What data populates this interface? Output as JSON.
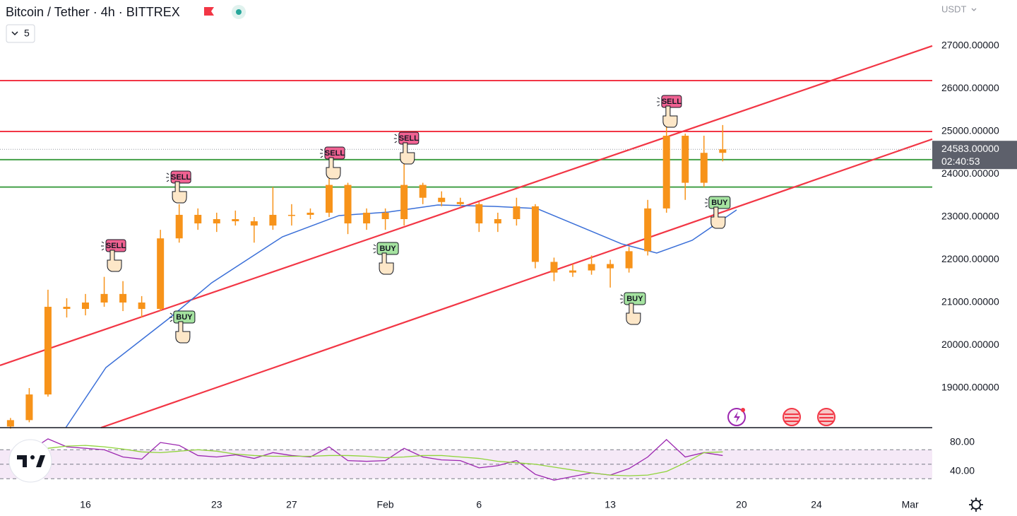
{
  "header": {
    "title": "Bitcoin / Tether · 4h · BITTREX",
    "indicator_count": "5",
    "currency": "USDT"
  },
  "chart_data": [
    {
      "type": "candlestick",
      "x": [
        12,
        13,
        14,
        15,
        16,
        17,
        18,
        19,
        20,
        21,
        22,
        23,
        24,
        25,
        26,
        27,
        28,
        29,
        30,
        31,
        32,
        33,
        34,
        35,
        36,
        37,
        38,
        39,
        40,
        41,
        42,
        43,
        44,
        45,
        46,
        47,
        48,
        49,
        50
      ],
      "open": [
        18100,
        18250,
        18850,
        20900,
        20850,
        21000,
        21200,
        21000,
        20850,
        22500,
        23050,
        22850,
        22950,
        22900,
        22800,
        23050,
        23050,
        23100,
        23750,
        22850,
        23100,
        22950,
        23750,
        23450,
        23350,
        23300,
        22850,
        22950,
        23250,
        21950,
        21700,
        21750,
        21900,
        21800,
        22200,
        23200,
        24900,
        23800,
        24500
      ],
      "high": [
        18300,
        19000,
        21300,
        21100,
        21200,
        21600,
        21500,
        21150,
        22700,
        23300,
        23200,
        23100,
        23150,
        23000,
        23700,
        23300,
        23200,
        23900,
        23800,
        23200,
        23200,
        24300,
        23800,
        23600,
        23450,
        23350,
        23100,
        23450,
        23300,
        22050,
        21900,
        22100,
        22000,
        22300,
        23400,
        25200,
        24950,
        24900,
        25150
      ],
      "low": [
        18050,
        18200,
        18800,
        20650,
        20700,
        20900,
        20800,
        20650,
        20800,
        22400,
        22700,
        22650,
        22800,
        22400,
        22700,
        22800,
        22950,
        23000,
        22600,
        22700,
        22700,
        22800,
        23300,
        23250,
        23250,
        22650,
        22650,
        22800,
        21800,
        21500,
        21600,
        21650,
        21350,
        21700,
        22100,
        23100,
        23400,
        23700,
        24300
      ],
      "close": [
        18250,
        18850,
        20900,
        20850,
        21000,
        21200,
        21000,
        20850,
        22500,
        23050,
        22850,
        22950,
        22900,
        22800,
        23050,
        23050,
        23100,
        23750,
        22850,
        23100,
        22950,
        23750,
        23450,
        23350,
        23300,
        22850,
        22950,
        23250,
        21950,
        21700,
        21750,
        21900,
        21800,
        22200,
        23200,
        24900,
        23800,
        24500,
        24583
      ],
      "color": "#f7931a",
      "xlim": [
        11.44,
        61.18
      ],
      "ylim": [
        18074,
        28074
      ],
      "xticks": [
        {
          "value": 16,
          "label": "16"
        },
        {
          "value": 23,
          "label": "23"
        },
        {
          "value": 27,
          "label": "27"
        },
        {
          "value": 32,
          "label": "Feb"
        },
        {
          "value": 37,
          "label": "6"
        },
        {
          "value": 44,
          "label": "13"
        },
        {
          "value": 51,
          "label": "20"
        },
        {
          "value": 55,
          "label": "24"
        },
        {
          "value": 60,
          "label": "Mar"
        }
      ],
      "yticks": [
        {
          "value": 19000,
          "label": "19000.00000"
        },
        {
          "value": 20000,
          "label": "20000.00000"
        },
        {
          "value": 21000,
          "label": "21000.00000"
        },
        {
          "value": 22000,
          "label": "22000.00000"
        },
        {
          "value": 23000,
          "label": "23000.00000"
        },
        {
          "value": 24000,
          "label": "24000.00000"
        },
        {
          "value": 25000,
          "label": "25000.00000"
        },
        {
          "value": 26000,
          "label": "26000.00000"
        },
        {
          "value": 27000,
          "label": "27000.00000"
        }
      ],
      "last_price": {
        "value": 24583,
        "label": "24583.00000"
      },
      "countdown": "02:40:53",
      "horizontal_lines": [
        {
          "value": 26190,
          "color": "#f23645"
        },
        {
          "value": 25000,
          "color": "#f23645"
        },
        {
          "value": 24340,
          "color": "#43a047"
        },
        {
          "value": 23700,
          "color": "#43a047"
        }
      ],
      "trend_lines": [
        {
          "x": [
            11.44,
            61.18
          ],
          "y": [
            19530,
            27000
          ],
          "color": "#f23645"
        },
        {
          "x": [
            16.83,
            61.18
          ],
          "y": [
            18074,
            24820
          ],
          "color": "#f23645"
        }
      ],
      "moving_average": {
        "x": [
          14.95,
          17.09,
          20.48,
          22.74,
          26.51,
          29.53,
          32.16,
          34.8,
          37.82,
          40.08,
          42.34,
          44.6,
          46.48,
          48.37,
          50.74
        ],
        "values": [
          18074,
          19479,
          20636,
          21463,
          22537,
          23033,
          23116,
          23281,
          23248,
          23198,
          22785,
          22372,
          22157,
          22455,
          23165
        ],
        "color": "#3a6fd8"
      },
      "signals": [
        {
          "label": "SELL",
          "x": 17.47,
          "y": 22322
        },
        {
          "label": "SELL",
          "x": 20.94,
          "y": 23926
        },
        {
          "label": "SELL",
          "x": 29.15,
          "y": 24488
        },
        {
          "label": "SELL",
          "x": 33.1,
          "y": 24835
        },
        {
          "label": "SELL",
          "x": 47.12,
          "y": 25694
        },
        {
          "label": "BUY",
          "x": 21.12,
          "y": 20653
        },
        {
          "label": "BUY",
          "x": 31.98,
          "y": 22256
        },
        {
          "label": "BUY",
          "x": 45.16,
          "y": 21083
        },
        {
          "label": "BUY",
          "x": 49.68,
          "y": 23331
        }
      ]
    },
    {
      "type": "line",
      "x": [
        12,
        13,
        14,
        15,
        16,
        17,
        18,
        19,
        20,
        21,
        22,
        23,
        24,
        25,
        26,
        27,
        28,
        29,
        30,
        31,
        32,
        33,
        34,
        35,
        36,
        37,
        38,
        39,
        40,
        41,
        42,
        43,
        44,
        45,
        46,
        47,
        48,
        49,
        50
      ],
      "series": [
        {
          "color": "#9c27b0",
          "values": [
            62,
            68,
            85,
            74,
            72,
            70,
            60,
            57,
            80,
            76,
            62,
            60,
            63,
            58,
            66,
            62,
            60,
            74,
            55,
            54,
            55,
            72,
            60,
            56,
            55,
            45,
            48,
            55,
            36,
            28,
            33,
            38,
            35,
            44,
            60,
            84,
            60,
            66,
            62
          ]
        },
        {
          "color": "#8fd43a",
          "values": [
            64,
            66,
            72,
            75,
            76,
            74,
            71,
            67,
            66,
            68,
            70,
            68,
            64,
            62,
            61,
            61,
            61,
            62,
            62,
            61,
            59,
            60,
            62,
            62,
            60,
            58,
            54,
            52,
            50,
            46,
            42,
            38,
            35,
            34,
            35,
            40,
            52,
            66,
            67
          ]
        }
      ],
      "xlim": [
        11.44,
        61.18
      ],
      "ylim": [
        10.7,
        100.5
      ],
      "yticks": [
        {
          "value": 40,
          "label": "40.00"
        },
        {
          "value": 80,
          "label": "80.00"
        }
      ],
      "levels": [
        70,
        50,
        30
      ]
    }
  ]
}
